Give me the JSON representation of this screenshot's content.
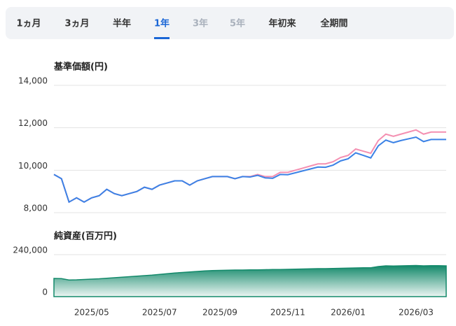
{
  "tabs": [
    {
      "label": "1ヵ月",
      "state": "normal"
    },
    {
      "label": "3ヵ月",
      "state": "normal"
    },
    {
      "label": "半年",
      "state": "normal"
    },
    {
      "label": "1年",
      "state": "active"
    },
    {
      "label": "3年",
      "state": "disabled"
    },
    {
      "label": "5年",
      "state": "disabled"
    },
    {
      "label": "年初来",
      "state": "normal"
    },
    {
      "label": "全期間",
      "state": "normal"
    }
  ],
  "chart_data": [
    {
      "type": "line",
      "title": "基準価額(円)",
      "ylim": [
        8000,
        14000
      ],
      "yticks": [
        {
          "value": 8000,
          "label": "8,000"
        },
        {
          "value": 10000,
          "label": "10,000"
        },
        {
          "value": 12000,
          "label": "12,000"
        },
        {
          "value": 14000,
          "label": "14,000"
        }
      ],
      "grid": true,
      "series": [
        {
          "color": "#f48fb1",
          "values": [
            9800,
            9600,
            8500,
            8700,
            8500,
            8700,
            8800,
            9100,
            8900,
            8800,
            8900,
            9000,
            9200,
            9100,
            9300,
            9400,
            9500,
            9500,
            9300,
            9500,
            9600,
            9700,
            9700,
            9700,
            9600,
            9700,
            9700,
            9800,
            9700,
            9700,
            9900,
            9900,
            10000,
            10100,
            10200,
            10300,
            10300,
            10400,
            10600,
            10700,
            11000,
            10900,
            10800,
            11400,
            11700,
            11600,
            11700,
            11800,
            11900,
            11700,
            11800,
            11800,
            11800
          ]
        },
        {
          "color": "#3b82e6",
          "values": [
            9800,
            9600,
            8500,
            8700,
            8500,
            8700,
            8800,
            9100,
            8900,
            8800,
            8900,
            9000,
            9200,
            9100,
            9300,
            9400,
            9500,
            9500,
            9300,
            9500,
            9600,
            9700,
            9700,
            9700,
            9600,
            9700,
            9680,
            9760,
            9640,
            9620,
            9800,
            9790,
            9880,
            9970,
            10060,
            10150,
            10140,
            10240,
            10440,
            10540,
            10820,
            10700,
            10580,
            11150,
            11420,
            11300,
            11400,
            11480,
            11560,
            11350,
            11450,
            11450,
            11450
          ]
        }
      ]
    },
    {
      "type": "area",
      "title": "純資産(百万円)",
      "ylim": [
        0,
        240000
      ],
      "yticks": [
        0,
        {
          "value": 240000,
          "label": "240,000"
        }
      ],
      "grid": true,
      "color": "#13896a",
      "categories": [
        null,
        null,
        null,
        null,
        null,
        "2025/05",
        null,
        null,
        null,
        null,
        null,
        null,
        null,
        null,
        "2025/07",
        null,
        null,
        null,
        null,
        null,
        null,
        null,
        "2025/09",
        null,
        null,
        null,
        null,
        null,
        null,
        null,
        null,
        "2025/11",
        null,
        null,
        null,
        null,
        null,
        null,
        null,
        "2026/01",
        null,
        null,
        null,
        null,
        null,
        null,
        null,
        null,
        "2026/03",
        null,
        null,
        null,
        null
      ],
      "values": [
        104000,
        103000,
        95000,
        96000,
        98000,
        100000,
        102000,
        105000,
        108000,
        111000,
        114000,
        117000,
        120000,
        123000,
        127000,
        131000,
        135000,
        138000,
        141000,
        144000,
        147000,
        149000,
        150000,
        151000,
        152000,
        152000,
        153000,
        153000,
        154000,
        155000,
        155000,
        156000,
        157000,
        158000,
        159000,
        160000,
        160000,
        161000,
        162000,
        163000,
        164000,
        165000,
        165000,
        172000,
        176000,
        175000,
        176000,
        177000,
        178000,
        176000,
        177000,
        177000,
        176000
      ]
    }
  ]
}
